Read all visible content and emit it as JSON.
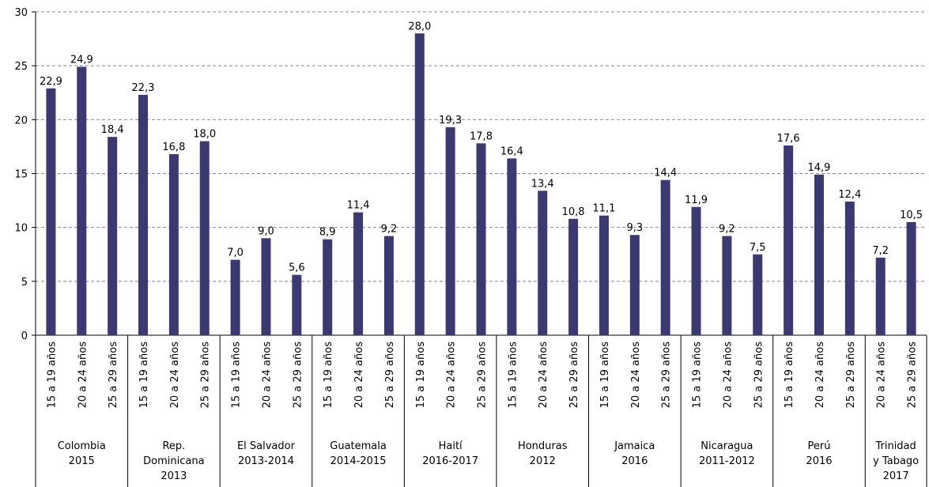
{
  "chart_data": {
    "type": "bar",
    "color": "#3b3872",
    "ylim": [
      0,
      30
    ],
    "yticks": [
      0,
      5,
      10,
      15,
      20,
      25,
      30
    ],
    "grid": true,
    "groups": [
      {
        "label": [
          "Colombia",
          "2015"
        ],
        "categories": [
          "15 a 19 años",
          "20 a 24 años",
          "25 a 29 años"
        ],
        "values": [
          22.9,
          24.9,
          18.4
        ],
        "value_labels": [
          "22,9",
          "24,9",
          "18,4"
        ]
      },
      {
        "label": [
          "Rep.",
          "Dominicana",
          "2013"
        ],
        "categories": [
          "15 a 19 años",
          "20 a 24 años",
          "25 a 29 años"
        ],
        "values": [
          22.3,
          16.8,
          18.0
        ],
        "value_labels": [
          "22,3",
          "16,8",
          "18,0"
        ]
      },
      {
        "label": [
          "El Salvador",
          "2013-2014"
        ],
        "categories": [
          "15 a 19 años",
          "20 a 24 años",
          "25 a 29 años"
        ],
        "values": [
          7.0,
          9.0,
          5.6
        ],
        "value_labels": [
          "7,0",
          "9,0",
          "5,6"
        ]
      },
      {
        "label": [
          "Guatemala",
          "2014-2015"
        ],
        "categories": [
          "15 a 19 años",
          "20 a 24 años",
          "25 a 29 años"
        ],
        "values": [
          8.9,
          11.4,
          9.2
        ],
        "value_labels": [
          "8,9",
          "11,4",
          "9,2"
        ]
      },
      {
        "label": [
          "Haití",
          "2016-2017"
        ],
        "categories": [
          "15 a 19 años",
          "20 a 24 años",
          "25 a 29 años"
        ],
        "values": [
          28.0,
          19.3,
          17.8
        ],
        "value_labels": [
          "28,0",
          "19,3",
          "17,8"
        ]
      },
      {
        "label": [
          "Honduras",
          "2012"
        ],
        "categories": [
          "15 a 19 años",
          "20 a 24 años",
          "25 a 29 años"
        ],
        "values": [
          16.4,
          13.4,
          10.8
        ],
        "value_labels": [
          "16,4",
          "13,4",
          "10,8"
        ]
      },
      {
        "label": [
          "Jamaica",
          "2016"
        ],
        "categories": [
          "15 a 19 años",
          "20 a 24 años",
          "25 a 29 años"
        ],
        "values": [
          11.1,
          9.3,
          14.4
        ],
        "value_labels": [
          "11,1",
          "9,3",
          "14,4"
        ]
      },
      {
        "label": [
          "Nicaragua",
          "2011-2012"
        ],
        "categories": [
          "15 a 19 años",
          "20 a 24 años",
          "25 a 29 años"
        ],
        "values": [
          11.9,
          9.2,
          7.5
        ],
        "value_labels": [
          "11,9",
          "9,2",
          "7,5"
        ]
      },
      {
        "label": [
          "Perú",
          "2016"
        ],
        "categories": [
          "15 a 19 años",
          "20 a 24 años",
          "25 a 29 años"
        ],
        "values": [
          17.6,
          14.9,
          12.4
        ],
        "value_labels": [
          "17,6",
          "14,9",
          "12,4"
        ]
      },
      {
        "label": [
          "Trinidad",
          "y Tabago",
          "2017"
        ],
        "categories": [
          "20 a 24 años",
          "25 a 29 años"
        ],
        "values": [
          7.2,
          10.5
        ],
        "value_labels": [
          "7,2",
          "10,5"
        ]
      }
    ]
  }
}
